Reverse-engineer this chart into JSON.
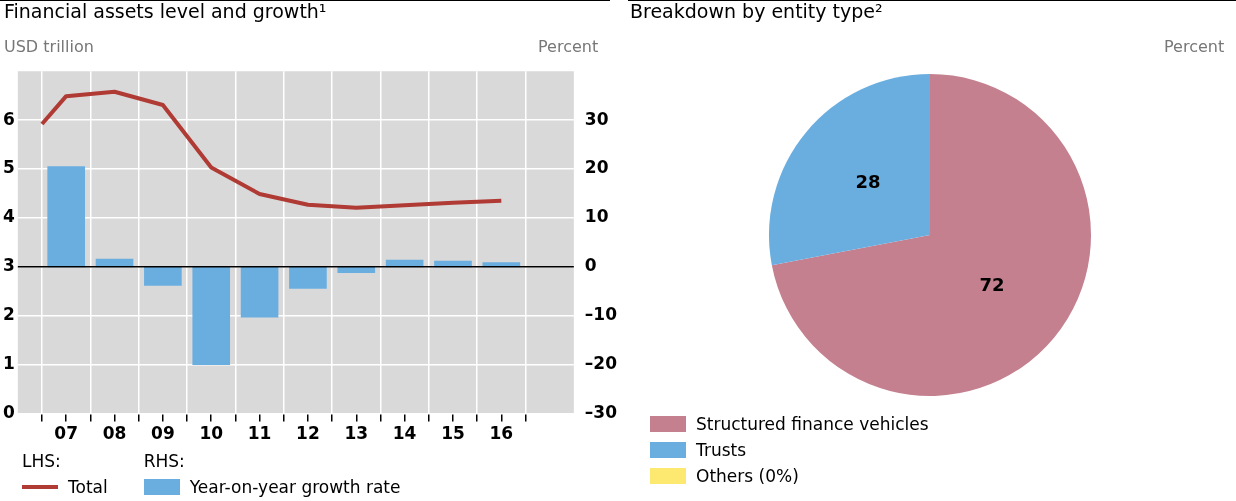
{
  "chart_data": [
    {
      "type": "bar",
      "title": "Financial assets level and growth¹",
      "ylabel": "USD trillion",
      "y2label": "Percent",
      "xlim": [
        6,
        17.5
      ],
      "xticks": [
        {
          "value": 6.5,
          "label": null
        },
        {
          "value": 7,
          "label": "07"
        },
        {
          "value": 7.5,
          "label": null
        },
        {
          "value": 8,
          "label": "08"
        },
        {
          "value": 8.5,
          "label": null
        },
        {
          "value": 9,
          "label": "09"
        },
        {
          "value": 9.5,
          "label": null
        },
        {
          "value": 10,
          "label": "10"
        },
        {
          "value": 10.5,
          "label": null
        },
        {
          "value": 11,
          "label": "11"
        },
        {
          "value": 11.5,
          "label": null
        },
        {
          "value": 12,
          "label": "12"
        },
        {
          "value": 12.5,
          "label": null
        },
        {
          "value": 13,
          "label": "13"
        },
        {
          "value": 13.5,
          "label": null
        },
        {
          "value": 14,
          "label": "14"
        },
        {
          "value": 14.5,
          "label": null
        },
        {
          "value": 15,
          "label": "15"
        },
        {
          "value": 15.5,
          "label": null
        },
        {
          "value": 16,
          "label": "16"
        },
        {
          "value": 16.5,
          "label": null
        }
      ],
      "ylim": [
        0,
        7
      ],
      "yticks": [
        0,
        1,
        2,
        3,
        4,
        5,
        6
      ],
      "y2lim": [
        -30,
        40
      ],
      "y2ticks": [
        {
          "value": -30,
          "label": "–30"
        },
        {
          "value": -20,
          "label": "–20"
        },
        {
          "value": -10,
          "label": "–10"
        },
        0,
        10,
        20,
        30
      ],
      "series": [
        {
          "name": "Total",
          "type": "line",
          "axis": "y",
          "color": "#b03a34",
          "x": [
            6.5,
            7,
            8,
            9,
            10,
            11,
            12,
            13,
            14,
            15,
            16
          ],
          "values": [
            5.92,
            6.49,
            6.58,
            6.31,
            5.03,
            4.49,
            4.27,
            4.21,
            4.26,
            4.31,
            4.35
          ]
        },
        {
          "name": "Year-on-year growth rate",
          "type": "bar",
          "axis": "y2",
          "color": "#6aaee0",
          "x": [
            7,
            8,
            9,
            10,
            11,
            12,
            13,
            14,
            15,
            16
          ],
          "values": [
            20.5,
            1.6,
            -3.8,
            -20,
            -10.3,
            -4.4,
            -1.2,
            1.4,
            1.2,
            0.9
          ]
        }
      ],
      "ref_lines": [
        {
          "axis": "y2",
          "value": 0,
          "color": "#000000"
        }
      ],
      "annotations": [
        "LHS:",
        "RHS:"
      ],
      "grid": true,
      "legend": "bottom"
    },
    {
      "type": "pie",
      "title": "Breakdown by entity type²",
      "categories": [
        "Structured finance vehicles",
        "Trusts",
        "Others (0%)"
      ],
      "values": [
        72,
        28,
        0
      ],
      "colors": [
        "#c4808f",
        "#6aaee0",
        "#fde96f"
      ],
      "data_labels": true,
      "annotations": [
        "Percent"
      ],
      "legend": "bottom"
    }
  ]
}
